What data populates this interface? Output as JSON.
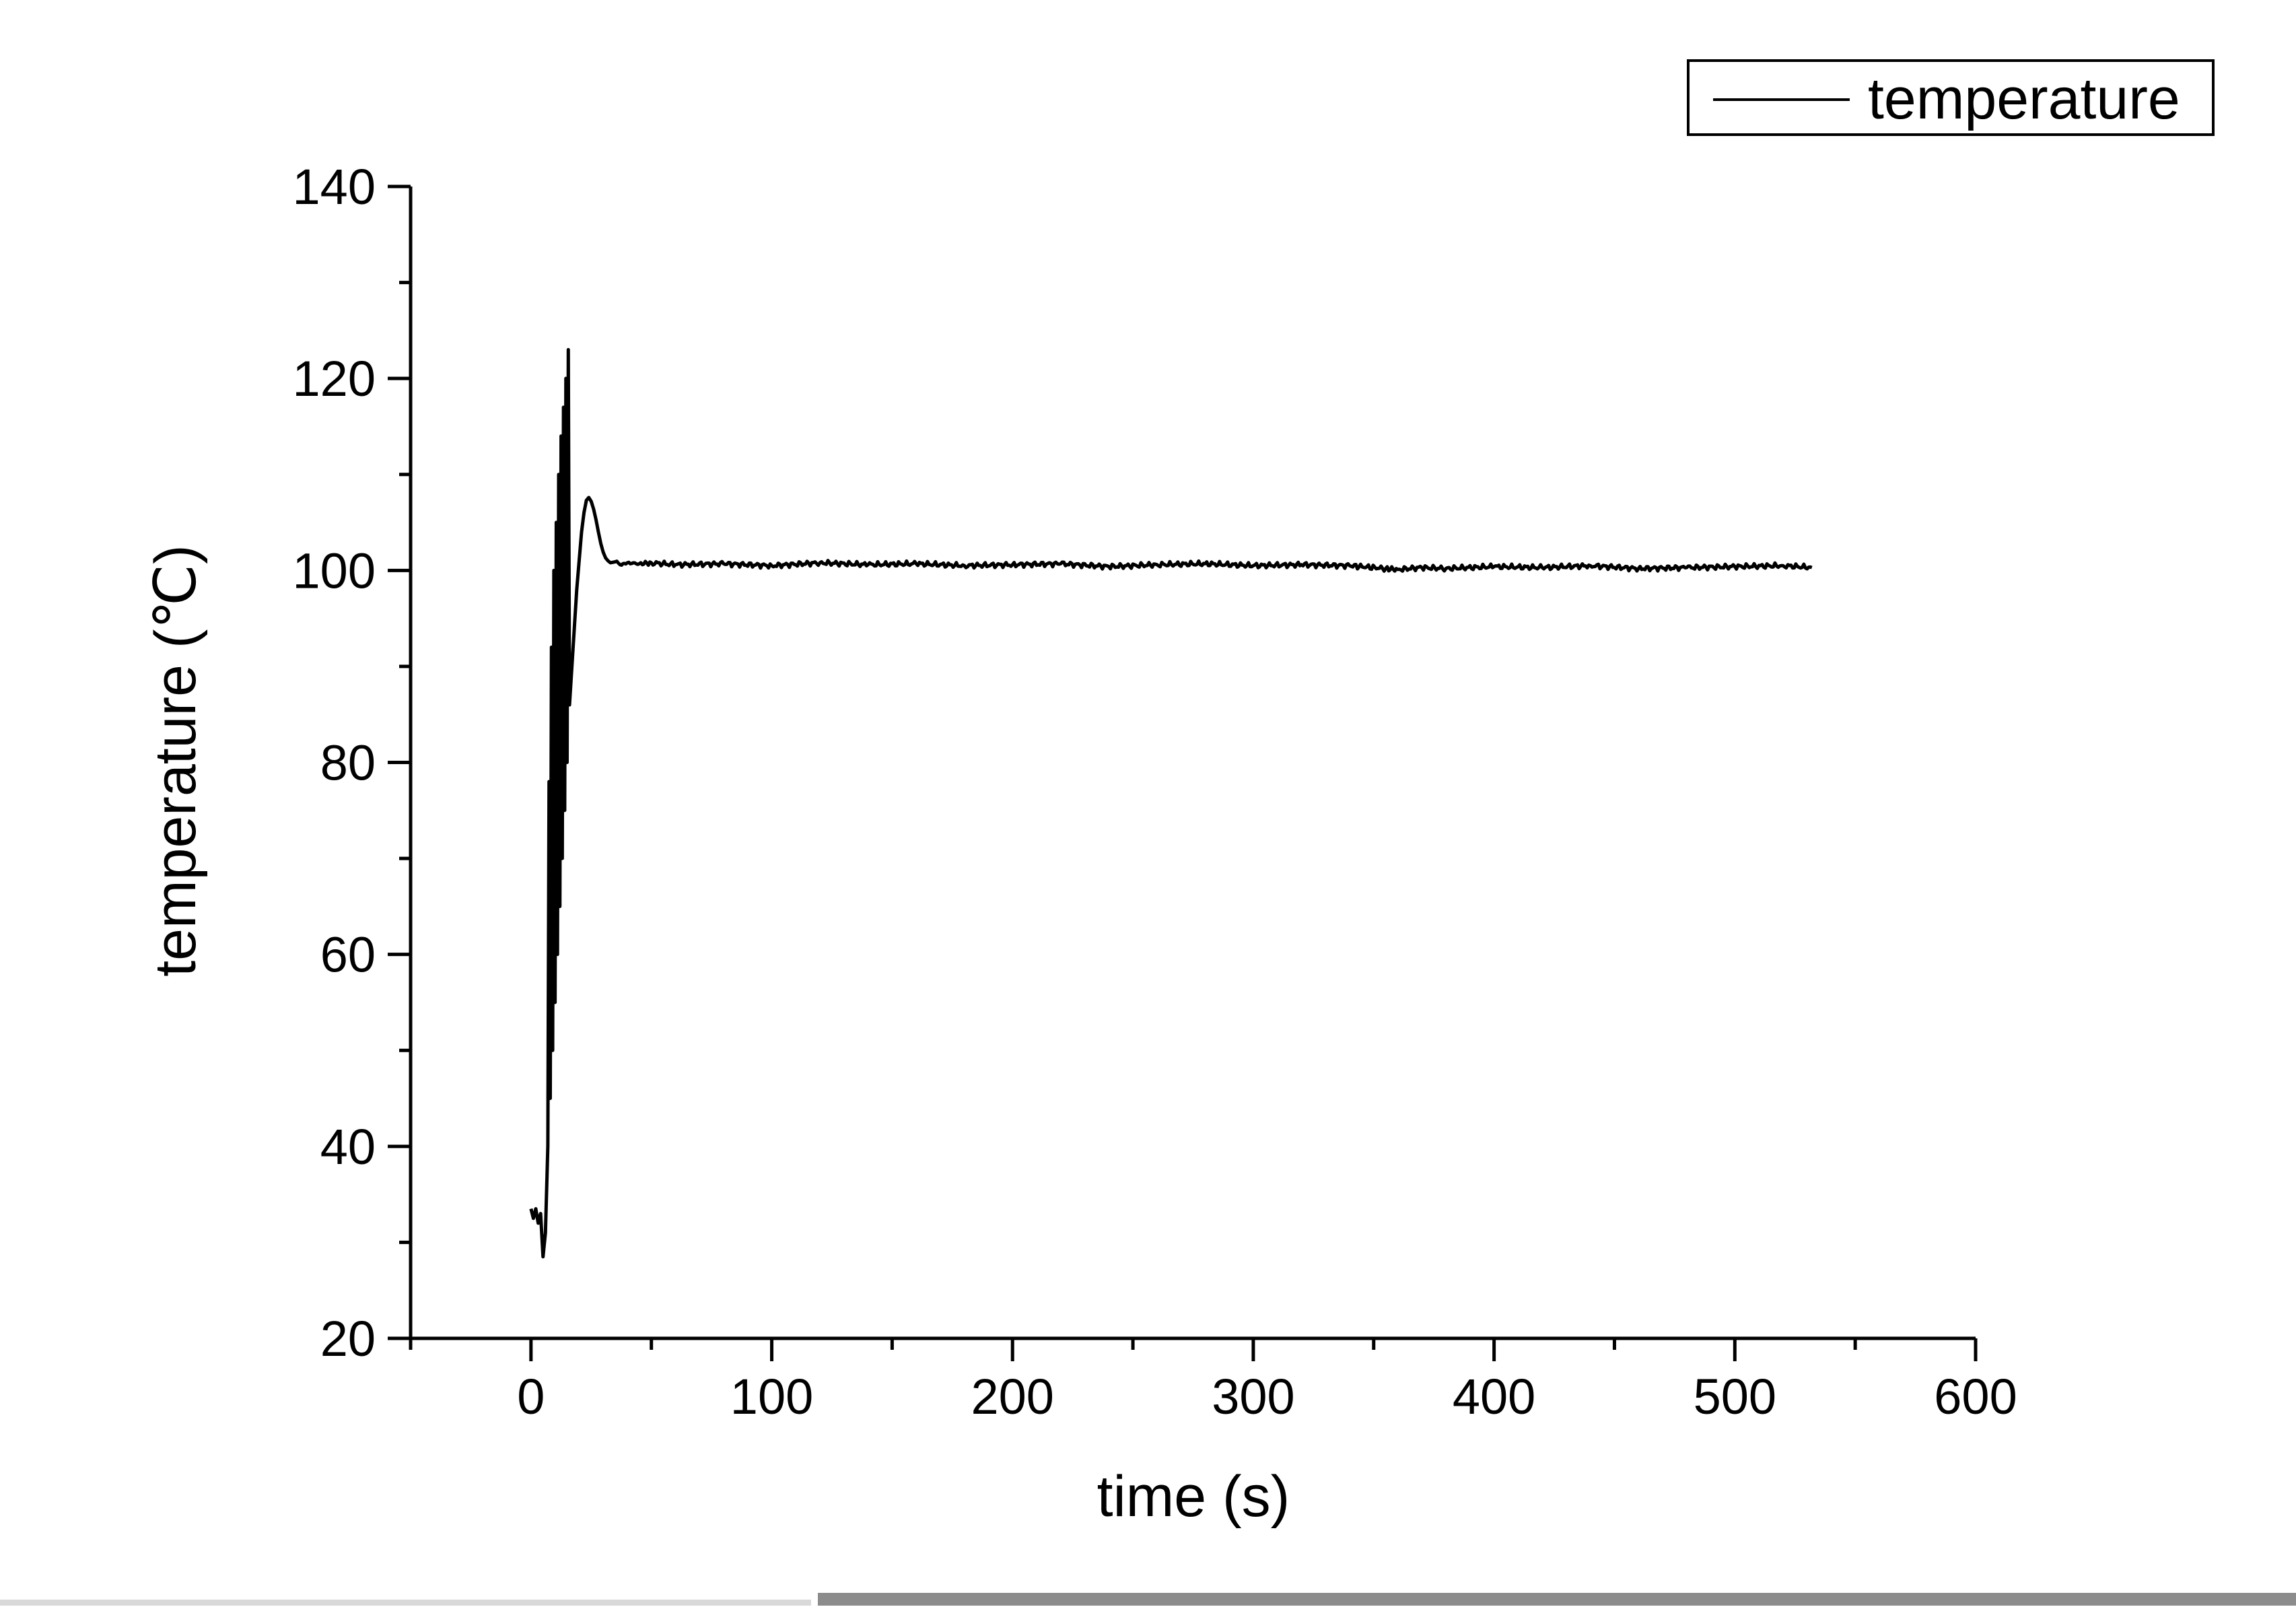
{
  "chart_data": {
    "type": "line",
    "title": "",
    "xlabel": "time (s)",
    "ylabel": "temperature (℃)",
    "xlim": [
      -50,
      600
    ],
    "ylim": [
      20,
      140
    ],
    "xticks": [
      0,
      100,
      200,
      300,
      400,
      500,
      600
    ],
    "yticks": [
      20,
      40,
      60,
      80,
      100,
      120,
      140
    ],
    "grid": false,
    "legend": {
      "placement": "top-right",
      "entries": [
        "temperature"
      ]
    },
    "series": [
      {
        "name": "temperature",
        "color": "#000000",
        "x": [
          0,
          1,
          2,
          3,
          4,
          5,
          6,
          7,
          7.5,
          8,
          8.5,
          9,
          9.5,
          10,
          10.5,
          11,
          11.5,
          12,
          12.5,
          13,
          13.5,
          14,
          14.5,
          15,
          15.5,
          16,
          17,
          18,
          19,
          20,
          21,
          22,
          23,
          24,
          25,
          26,
          27,
          28,
          29,
          30,
          31,
          32,
          33,
          35,
          37,
          40,
          45,
          50,
          60,
          80,
          100,
          120,
          140,
          160,
          180,
          200,
          220,
          240,
          260,
          280,
          300,
          320,
          340,
          355,
          360,
          370,
          380,
          400,
          420,
          440,
          460,
          480,
          500,
          520,
          532
        ],
        "y": [
          33.5,
          32.5,
          33.5,
          32,
          33,
          28.5,
          31,
          40,
          78,
          45,
          92,
          50,
          100,
          55,
          105,
          60,
          110,
          65,
          114,
          70,
          117,
          75,
          120,
          80,
          123,
          86,
          90,
          94,
          98,
          101,
          104,
          106,
          107.3,
          107.6,
          107.2,
          106.4,
          105.3,
          104,
          102.8,
          101.9,
          101.3,
          101,
          100.8,
          100.9,
          100.6,
          100.8,
          100.7,
          100.8,
          100.6,
          100.7,
          100.5,
          100.8,
          100.6,
          100.7,
          100.5,
          100.6,
          100.7,
          100.4,
          100.6,
          100.7,
          100.5,
          100.6,
          100.5,
          100.2,
          100.1,
          100.3,
          100.2,
          100.4,
          100.3,
          100.5,
          100.2,
          100.3,
          100.4,
          100.5,
          100.3
        ]
      }
    ]
  }
}
